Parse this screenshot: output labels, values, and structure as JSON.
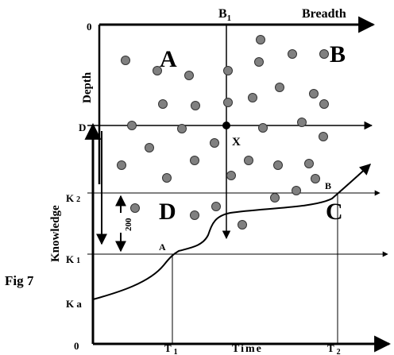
{
  "figure_label": "Fig 7",
  "regions": {
    "a": "A",
    "b": "B",
    "c": "C",
    "d": "D"
  },
  "axes": {
    "breadth": "Breadth",
    "depth": "Depth",
    "knowledge": "Knowledge",
    "time": "Time",
    "top_origin": "0",
    "bottom_origin": "0"
  },
  "markers": {
    "b1_prefix": "B",
    "b1_sub": "1",
    "d": "D",
    "x": "X",
    "k2_prefix": "K",
    "k2_sub": "2",
    "k1_prefix": "K",
    "k1_sub": "1",
    "ka": "K a",
    "t1_prefix": "T",
    "t1_sub": "1",
    "t2_prefix": "T",
    "t2_sub": "2",
    "point_a": "A",
    "point_b": "B",
    "interval": "200"
  },
  "colors": {
    "dot": "#808080",
    "ink": "#000000"
  }
}
